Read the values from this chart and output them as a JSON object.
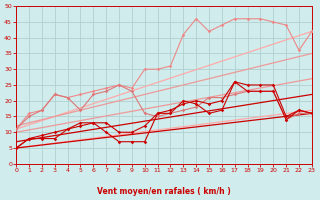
{
  "background_color": "#d0ecec",
  "grid_color": "#b0d0d0",
  "xlim": [
    0,
    23
  ],
  "ylim": [
    0,
    50
  ],
  "yticks": [
    0,
    5,
    10,
    15,
    20,
    25,
    30,
    35,
    40,
    45,
    50
  ],
  "xticks": [
    0,
    1,
    2,
    3,
    4,
    5,
    6,
    7,
    8,
    9,
    10,
    11,
    12,
    13,
    14,
    15,
    16,
    17,
    18,
    19,
    20,
    21,
    22,
    23
  ],
  "xlabel": "Vent moyen/en rafales ( km/h )",
  "tick_color": "#cc0000",
  "series": [
    {
      "x": [
        0,
        23
      ],
      "y": [
        11,
        42
      ],
      "color": "#ffaaaa",
      "lw": 0.9,
      "marker": "none",
      "ms": 0
    },
    {
      "x": [
        0,
        23
      ],
      "y": [
        5,
        17
      ],
      "color": "#ffaaaa",
      "lw": 0.9,
      "marker": "none",
      "ms": 0
    },
    {
      "x": [
        0,
        23
      ],
      "y": [
        12,
        35
      ],
      "color": "#ee9999",
      "lw": 0.9,
      "marker": "none",
      "ms": 0
    },
    {
      "x": [
        0,
        23
      ],
      "y": [
        10,
        27
      ],
      "color": "#ee9999",
      "lw": 0.9,
      "marker": "none",
      "ms": 0
    },
    {
      "x": [
        0,
        1,
        2,
        3,
        4,
        5,
        6,
        7,
        8,
        9,
        10,
        11,
        12,
        13,
        14,
        15,
        16,
        17,
        18,
        19,
        20,
        21,
        22,
        23
      ],
      "y": [
        11,
        16,
        17,
        22,
        21,
        22,
        23,
        24,
        25,
        24,
        30,
        30,
        31,
        41,
        46,
        42,
        44,
        46,
        46,
        46,
        45,
        44,
        36,
        42
      ],
      "color": "#ee8888",
      "lw": 0.8,
      "marker": "D",
      "ms": 1.8
    },
    {
      "x": [
        0,
        1,
        2,
        3,
        4,
        5,
        6,
        7,
        8,
        9,
        10,
        11,
        12,
        13,
        14,
        15,
        16,
        17,
        18,
        19,
        20,
        21,
        22,
        23
      ],
      "y": [
        11,
        15,
        17,
        22,
        21,
        17,
        22,
        23,
        25,
        23,
        16,
        15,
        16,
        17,
        18,
        21,
        21,
        22,
        23,
        23,
        23,
        14,
        16,
        16
      ],
      "color": "#dd7777",
      "lw": 0.8,
      "marker": "D",
      "ms": 1.8
    },
    {
      "x": [
        0,
        1,
        2,
        3,
        4,
        5,
        6,
        7,
        8,
        9,
        10,
        11,
        12,
        13,
        14,
        15,
        16,
        17,
        18,
        19,
        20,
        21,
        22,
        23
      ],
      "y": [
        5,
        8,
        9,
        10,
        11,
        12,
        13,
        13,
        10,
        10,
        12,
        16,
        17,
        19,
        20,
        19,
        20,
        26,
        25,
        25,
        25,
        15,
        17,
        16
      ],
      "color": "#cc0000",
      "lw": 0.8,
      "marker": "D",
      "ms": 1.8
    },
    {
      "x": [
        0,
        1,
        2,
        3,
        4,
        5,
        6,
        7,
        8,
        9,
        10,
        11,
        12,
        13,
        14,
        15,
        16,
        17,
        18,
        19,
        20,
        21,
        22,
        23
      ],
      "y": [
        5,
        8,
        8,
        8,
        11,
        13,
        13,
        10,
        7,
        7,
        7,
        16,
        16,
        20,
        19,
        16,
        17,
        26,
        23,
        23,
        23,
        14,
        17,
        16
      ],
      "color": "#cc0000",
      "lw": 0.8,
      "marker": "D",
      "ms": 1.8
    },
    {
      "x": [
        0,
        23
      ],
      "y": [
        5,
        16
      ],
      "color": "#cc0000",
      "lw": 0.9,
      "marker": "none",
      "ms": 0
    },
    {
      "x": [
        0,
        23
      ],
      "y": [
        7,
        22
      ],
      "color": "#cc0000",
      "lw": 0.9,
      "marker": "none",
      "ms": 0
    }
  ]
}
